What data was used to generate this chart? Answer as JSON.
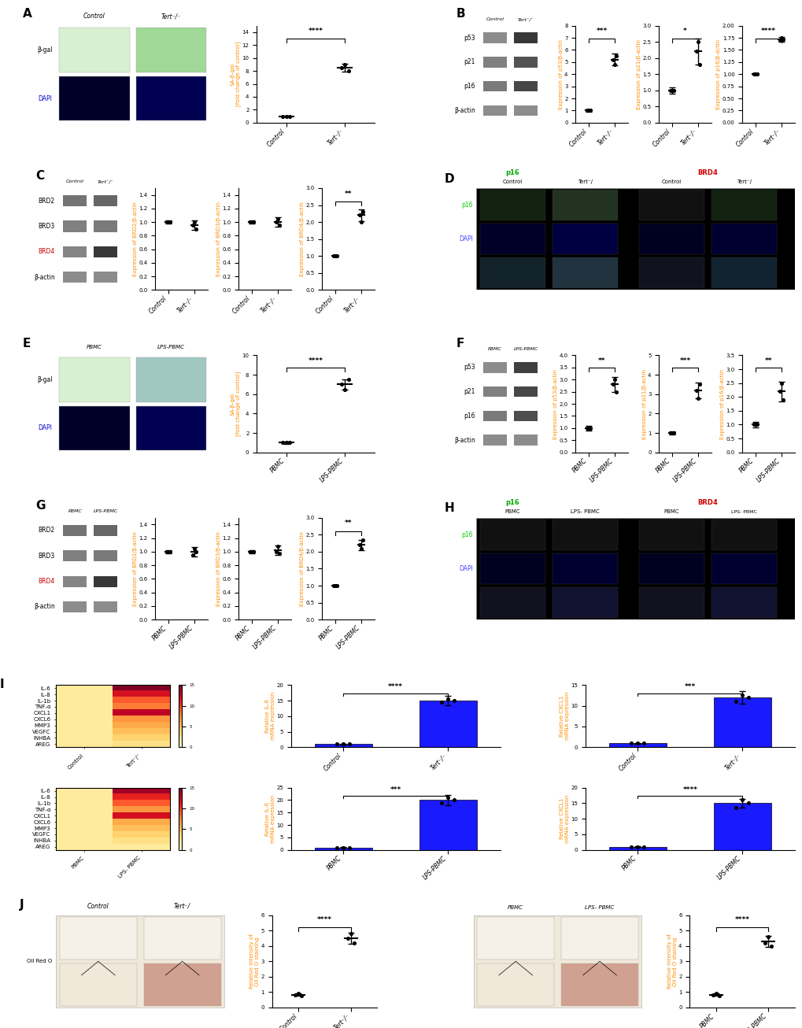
{
  "bg_color": "#ffffff",
  "panel_A": {
    "scatter_control": [
      1.0,
      1.0,
      1.0
    ],
    "scatter_tert": [
      8.5,
      9.0,
      8.0
    ],
    "mean_control": 1.0,
    "mean_tert": 8.5,
    "error_control": 0.1,
    "error_tert": 0.6,
    "ylabel": "SA-β-gal\n[fold change of control]",
    "xticks": [
      "Control",
      "Tert⁻/⁻"
    ],
    "ylim": [
      0,
      15
    ],
    "sig": "****"
  },
  "panel_B_p53": {
    "scatter_control": [
      1.0,
      1.0,
      1.0
    ],
    "scatter_tert": [
      5.2,
      4.8,
      5.5
    ],
    "mean_control": 1.0,
    "mean_tert": 5.2,
    "error_control": 0.1,
    "error_tert": 0.5,
    "ylabel": "Expression of p53/β-actin",
    "xticks": [
      "Control",
      "Tert⁻/⁻"
    ],
    "ylim": [
      0,
      8
    ],
    "sig": "***"
  },
  "panel_B_p21": {
    "scatter_control": [
      1.0,
      1.0,
      1.0
    ],
    "scatter_tert": [
      2.2,
      2.5,
      1.8
    ],
    "mean_control": 1.0,
    "mean_tert": 2.2,
    "error_control": 0.1,
    "error_tert": 0.4,
    "ylabel": "Expression of p21/β-actin",
    "xticks": [
      "Control",
      "Tert⁻/⁻"
    ],
    "ylim": [
      0,
      3
    ],
    "sig": "*"
  },
  "panel_B_p16": {
    "scatter_control": [
      1.0,
      1.0,
      1.0
    ],
    "scatter_tert": [
      1.7,
      1.75,
      1.72
    ],
    "mean_control": 1.0,
    "mean_tert": 1.72,
    "error_control": 0.02,
    "error_tert": 0.05,
    "ylabel": "Expression of p16/β-actin",
    "xticks": [
      "Control",
      "Tert⁻/⁻"
    ],
    "ylim": [
      0.0,
      2.0
    ],
    "sig": "****"
  },
  "panel_C_BRD2": {
    "scatter_control": [
      1.0,
      1.0,
      1.0
    ],
    "scatter_tert": [
      0.95,
      1.0,
      0.9
    ],
    "mean_control": 1.0,
    "mean_tert": 0.95,
    "error_control": 0.02,
    "error_tert": 0.07,
    "ylabel": "Expression of BRD2/β-actin",
    "xticks": [
      "Control",
      "Tert⁻/⁻"
    ],
    "ylim": [
      0.0,
      1.5
    ],
    "sig": ""
  },
  "panel_C_BRD3": {
    "scatter_control": [
      1.0,
      1.0,
      1.0
    ],
    "scatter_tert": [
      1.0,
      1.05,
      0.95
    ],
    "mean_control": 1.0,
    "mean_tert": 1.0,
    "error_control": 0.02,
    "error_tert": 0.07,
    "ylabel": "Expression of BRD3/β-actin",
    "xticks": [
      "Control",
      "Tert⁻/⁻"
    ],
    "ylim": [
      0.0,
      1.5
    ],
    "sig": ""
  },
  "panel_C_BRD4": {
    "scatter_control": [
      1.0,
      1.0,
      1.0
    ],
    "scatter_tert": [
      2.2,
      2.0,
      2.3
    ],
    "mean_control": 1.0,
    "mean_tert": 2.2,
    "error_control": 0.02,
    "error_tert": 0.18,
    "ylabel": "Expression of BRD4/β-actin",
    "xticks": [
      "Control",
      "Tert⁻/⁻"
    ],
    "ylim": [
      0,
      3
    ],
    "sig": "**"
  },
  "panel_E": {
    "scatter_control": [
      1.0,
      1.0,
      1.0
    ],
    "scatter_tert": [
      7.0,
      6.5,
      7.5
    ],
    "mean_control": 1.0,
    "mean_tert": 7.0,
    "error_control": 0.1,
    "error_tert": 0.5,
    "ylabel": "SA-β-gal\n[fold change of control]",
    "xticks": [
      "PBMC",
      "LPS-PBMC"
    ],
    "ylim": [
      0,
      10
    ],
    "sig": "****"
  },
  "panel_F_p53": {
    "scatter_control": [
      1.0,
      1.0,
      1.0
    ],
    "scatter_tert": [
      2.8,
      3.0,
      2.5
    ],
    "mean_control": 1.0,
    "mean_tert": 2.8,
    "error_control": 0.1,
    "error_tert": 0.3,
    "ylabel": "Expression of p53/β-actin",
    "xticks": [
      "PBMC",
      "LPS-PBMC"
    ],
    "ylim": [
      0,
      4
    ],
    "sig": "**"
  },
  "panel_F_p21": {
    "scatter_control": [
      1.0,
      1.0,
      1.0
    ],
    "scatter_tert": [
      3.2,
      2.8,
      3.5
    ],
    "mean_control": 1.0,
    "mean_tert": 3.2,
    "error_control": 0.1,
    "error_tert": 0.4,
    "ylabel": "Expression of p21/β-actin",
    "xticks": [
      "PBMC",
      "LPS-PBMC"
    ],
    "ylim": [
      0,
      5
    ],
    "sig": "***"
  },
  "panel_F_p16": {
    "scatter_control": [
      1.0,
      1.0,
      1.0
    ],
    "scatter_tert": [
      2.2,
      2.5,
      1.9
    ],
    "mean_control": 1.0,
    "mean_tert": 2.2,
    "error_control": 0.1,
    "error_tert": 0.35,
    "ylabel": "Expression of p16/β-actin",
    "xticks": [
      "PBMC",
      "LPS-PBMC"
    ],
    "ylim": [
      0,
      3.5
    ],
    "sig": "**"
  },
  "panel_G_BRD2": {
    "scatter_control": [
      1.0,
      1.0,
      1.0
    ],
    "scatter_tert": [
      0.95,
      1.05,
      1.0
    ],
    "mean_control": 1.0,
    "mean_tert": 1.0,
    "error_control": 0.02,
    "error_tert": 0.07,
    "ylabel": "Expression of BRD2/β-actin",
    "xticks": [
      "PBMC",
      "LPS-PBMC"
    ],
    "ylim": [
      0.0,
      1.5
    ],
    "sig": ""
  },
  "panel_G_BRD3": {
    "scatter_control": [
      1.0,
      1.0,
      1.0
    ],
    "scatter_tert": [
      1.0,
      1.08,
      0.98
    ],
    "mean_control": 1.0,
    "mean_tert": 1.02,
    "error_control": 0.02,
    "error_tert": 0.07,
    "ylabel": "Expression of BRD3/β-actin",
    "xticks": [
      "PBMC",
      "LPS-PBMC"
    ],
    "ylim": [
      0.0,
      1.5
    ],
    "sig": ""
  },
  "panel_G_BRD4": {
    "scatter_control": [
      1.0,
      1.0,
      1.0
    ],
    "scatter_tert": [
      2.2,
      2.1,
      2.35
    ],
    "mean_control": 1.0,
    "mean_tert": 2.2,
    "error_control": 0.02,
    "error_tert": 0.15,
    "ylabel": "Expression of BRD4/β-actin",
    "xticks": [
      "PBMC",
      "LPS-PBMC"
    ],
    "ylim": [
      0,
      3
    ],
    "sig": "**"
  },
  "heatmap_genes": [
    "IL-6",
    "IL-8",
    "IL-1b",
    "TNF-α",
    "CXCL1",
    "CXCL6",
    "MMP3",
    "VEGFC",
    "INHBA",
    "AREG"
  ],
  "heatmap_tert_values": [
    15,
    12,
    9,
    8,
    13,
    7,
    6,
    5,
    4,
    3
  ],
  "heatmap_pbmc_values": [
    14,
    11,
    9,
    7,
    12,
    6,
    5,
    4,
    3,
    2
  ],
  "panel_I_tert_IL6": {
    "categories": [
      "Control",
      "Tert⁻/⁻"
    ],
    "values": [
      1.0,
      15.0
    ],
    "errors": [
      0.1,
      1.5
    ],
    "scatter_control": [
      1.0,
      1.0,
      1.0
    ],
    "scatter_tert": [
      14.5,
      15.5,
      15.0
    ],
    "ylabel": "Relative IL-6\nmRNA expression",
    "ylim": [
      0,
      20
    ],
    "bar_color": "#1a1aff",
    "sig": "****"
  },
  "panel_I_tert_CXCL1": {
    "categories": [
      "Control",
      "Tert⁻/⁻"
    ],
    "values": [
      1.0,
      12.0
    ],
    "errors": [
      0.1,
      1.5
    ],
    "scatter_control": [
      1.0,
      1.0,
      1.0
    ],
    "scatter_tert": [
      11.0,
      12.5,
      12.0
    ],
    "ylabel": "Relative CXCL1\nmRNA expression",
    "ylim": [
      0,
      15
    ],
    "bar_color": "#1a1aff",
    "sig": "***"
  },
  "panel_I_pbmc_IL6": {
    "categories": [
      "PBMC",
      "LPS-PBMC"
    ],
    "values": [
      1.0,
      20.0
    ],
    "errors": [
      0.1,
      2.0
    ],
    "scatter_control": [
      1.0,
      1.0,
      1.0
    ],
    "scatter_tert": [
      19.0,
      21.0,
      20.0
    ],
    "ylabel": "Relative IL-6\nmRNA expression",
    "ylim": [
      0,
      25
    ],
    "bar_color": "#1a1aff",
    "sig": "***"
  },
  "panel_I_pbmc_CXCL1": {
    "categories": [
      "PBMC",
      "LPS-PBMC"
    ],
    "values": [
      1.0,
      15.0
    ],
    "errors": [
      0.1,
      1.5
    ],
    "scatter_control": [
      1.0,
      1.0,
      1.0
    ],
    "scatter_tert": [
      13.5,
      16.0,
      15.0
    ],
    "ylabel": "Relative CXCL1\nmRNA expression",
    "ylim": [
      0,
      20
    ],
    "bar_color": "#1a1aff",
    "sig": "****"
  },
  "panel_J_tert": {
    "scatter_control": [
      0.8,
      0.9,
      0.75
    ],
    "scatter_tert": [
      4.5,
      4.8,
      4.2
    ],
    "mean_control": 0.82,
    "mean_tert": 4.5,
    "error_control": 0.08,
    "error_tert": 0.35,
    "ylabel": "Relative intensity of\nOil Red O staining",
    "xticks": [
      "Control",
      "Tert⁻/⁻"
    ],
    "ylim": [
      0,
      6
    ],
    "sig": "****"
  },
  "panel_J_pbmc": {
    "scatter_control": [
      0.8,
      0.9,
      0.75
    ],
    "scatter_tert": [
      4.2,
      4.6,
      4.0
    ],
    "mean_control": 0.82,
    "mean_tert": 4.3,
    "error_control": 0.08,
    "error_tert": 0.35,
    "ylabel": "Relative intensity of\nOil Red O staining",
    "xticks": [
      "PBMC",
      "LPS-PBMC"
    ],
    "ylim": [
      0,
      6
    ],
    "sig": "****"
  },
  "label_color_orange": "#FF8C00",
  "label_color_blue": "#0000CD",
  "label_color_red": "#CC0000",
  "scatter_dot_color": "#000000",
  "bar_color_blue": "#1a1aff"
}
